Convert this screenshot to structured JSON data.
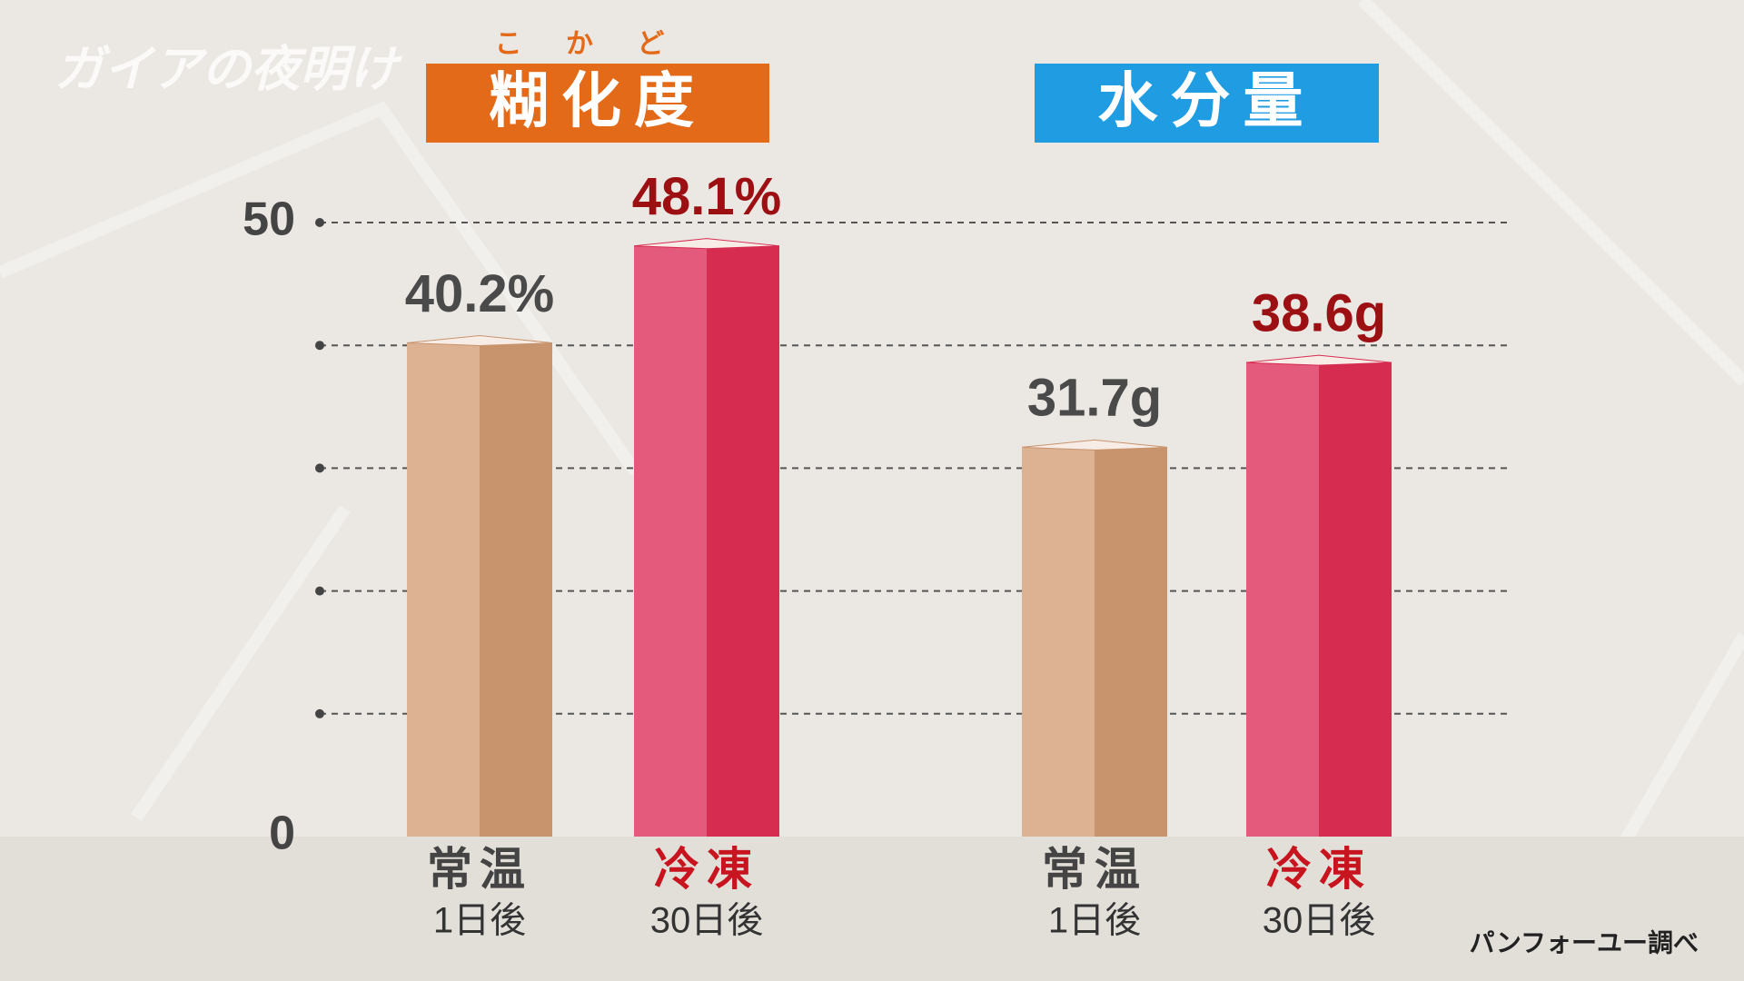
{
  "logo": "ガイアの夜明け",
  "chart_data": {
    "type": "bar",
    "ylim": [
      0,
      50
    ],
    "yticks": [
      0,
      50
    ],
    "ygrid": [
      10,
      20,
      30,
      40,
      50
    ],
    "grid": true,
    "groups": [
      {
        "title": "糊化度",
        "ruby": "こ か ど",
        "title_color": "#e26a18",
        "categories": [
          "常温",
          "冷凍"
        ],
        "sublabels": [
          "1日後",
          "30日後"
        ],
        "values": [
          40.2,
          48.1
        ],
        "value_labels": [
          "40.2%",
          "48.1%"
        ]
      },
      {
        "title": "水分量",
        "title_color": "#1f9ce2",
        "categories": [
          "常温",
          "冷凍"
        ],
        "sublabels": [
          "1日後",
          "30日後"
        ],
        "values": [
          31.7,
          38.6
        ],
        "value_labels": [
          "31.7g",
          "38.6g"
        ]
      }
    ],
    "bar_colors": [
      [
        "#dcb293",
        "#c8946e"
      ],
      [
        "#e45a7c",
        "#d62c50"
      ]
    ],
    "label_colors": [
      "#4a4a4a",
      "#9c1014"
    ],
    "category_colors": [
      "#444444",
      "#c8141e"
    ],
    "source": "パンフォーユー調べ"
  }
}
